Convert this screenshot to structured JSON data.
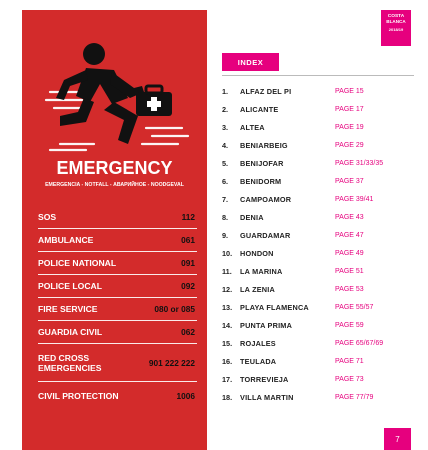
{
  "brand": {
    "line1": "COSTA",
    "line2": "BLANCA",
    "line3": "2018/19"
  },
  "emergency": {
    "title": "EMERGENCY",
    "subtitle": "EMERGENCIA - NOTFALL - АВАРИЙНОЕ - NOODGEVAL",
    "contacts": [
      {
        "label": "SOS",
        "number": "112"
      },
      {
        "label": "AMBULANCE",
        "number": "061"
      },
      {
        "label": "POLICE NATIONAL",
        "number": "091"
      },
      {
        "label": "POLICE LOCAL",
        "number": "092"
      },
      {
        "label": "FIRE SERVICE",
        "number": "080 or 085"
      },
      {
        "label": "GUARDIA CIVIL",
        "number": "062"
      },
      {
        "label": "RED CROSS EMERGENCIES",
        "number": "901 222 222"
      },
      {
        "label": "CIVIL PROTECTION",
        "number": "1006"
      }
    ]
  },
  "index": {
    "title": "INDEX",
    "entries": [
      {
        "num": "1.",
        "town": "ALFAZ DEL PI",
        "page": "PAGE 15"
      },
      {
        "num": "2.",
        "town": "ALICANTE",
        "page": "PAGE 17"
      },
      {
        "num": "3.",
        "town": "ALTEA",
        "page": "PAGE 19"
      },
      {
        "num": "4.",
        "town": "BENIARBEIG",
        "page": "PAGE 29"
      },
      {
        "num": "5.",
        "town": "BENIJOFAR",
        "page": "PAGE 31/33/35"
      },
      {
        "num": "6.",
        "town": "BENIDORM",
        "page": "PAGE 37"
      },
      {
        "num": "7.",
        "town": "CAMPOAMOR",
        "page": "PAGE 39/41"
      },
      {
        "num": "8.",
        "town": "DENIA",
        "page": "PAGE 43"
      },
      {
        "num": "9.",
        "town": "GUARDAMAR",
        "page": "PAGE 47"
      },
      {
        "num": "10.",
        "town": "HONDON",
        "page": "PAGE 49"
      },
      {
        "num": "11.",
        "town": "LA MARINA",
        "page": "PAGE 51"
      },
      {
        "num": "12.",
        "town": "LA ZENIA",
        "page": "PAGE 53"
      },
      {
        "num": "13.",
        "town": "PLAYA FLAMENCA",
        "page": "PAGE 55/57"
      },
      {
        "num": "14.",
        "town": "PUNTA PRIMA",
        "page": "PAGE 59"
      },
      {
        "num": "15.",
        "town": "ROJALES",
        "page": "PAGE 65/67/69"
      },
      {
        "num": "16.",
        "town": "TEULADA",
        "page": "PAGE 71"
      },
      {
        "num": "17.",
        "town": "TORREVIEJA",
        "page": "PAGE 73"
      },
      {
        "num": "18.",
        "town": "VILLA MARTIN",
        "page": "PAGE 77/79"
      }
    ]
  },
  "page_number": "7",
  "colors": {
    "red": "#d32b2b",
    "magenta": "#e6007e"
  },
  "icons": {
    "emergency": "running-person-with-first-aid-kit-icon"
  }
}
